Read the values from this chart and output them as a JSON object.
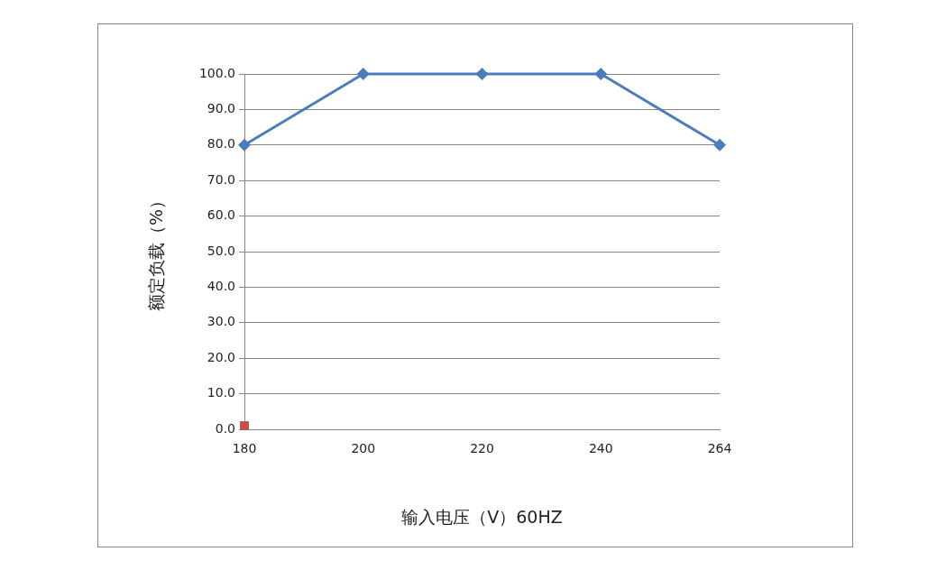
{
  "chart_data": {
    "type": "line",
    "xlabel": "输入电压（V）60HZ",
    "ylabel": "额定负载（%）",
    "categories": [
      "180",
      "200",
      "220",
      "240",
      "264"
    ],
    "series": [
      {
        "color": "#4a7ebb",
        "values": [
          80,
          100,
          100,
          100,
          80
        ],
        "marker": "diamond",
        "line_style": "solid"
      },
      {
        "type": "scatter",
        "color": "#c0504d",
        "values": [
          1,
          null,
          null,
          null,
          null
        ],
        "marker": "square"
      }
    ],
    "ylim": [
      0,
      100
    ],
    "yticks": [
      {
        "value": 0,
        "label": "0.0"
      },
      {
        "value": 10,
        "label": "10.0"
      },
      {
        "value": 20,
        "label": "20.0"
      },
      {
        "value": 30,
        "label": "30.0"
      },
      {
        "value": 40,
        "label": "40.0"
      },
      {
        "value": 50,
        "label": "50.0"
      },
      {
        "value": 60,
        "label": "60.0"
      },
      {
        "value": 70,
        "label": "70.0"
      },
      {
        "value": 80,
        "label": "80.0"
      },
      {
        "value": 90,
        "label": "90.0"
      },
      {
        "value": 100,
        "label": "100.0"
      }
    ],
    "grid": "y",
    "legend": false
  }
}
